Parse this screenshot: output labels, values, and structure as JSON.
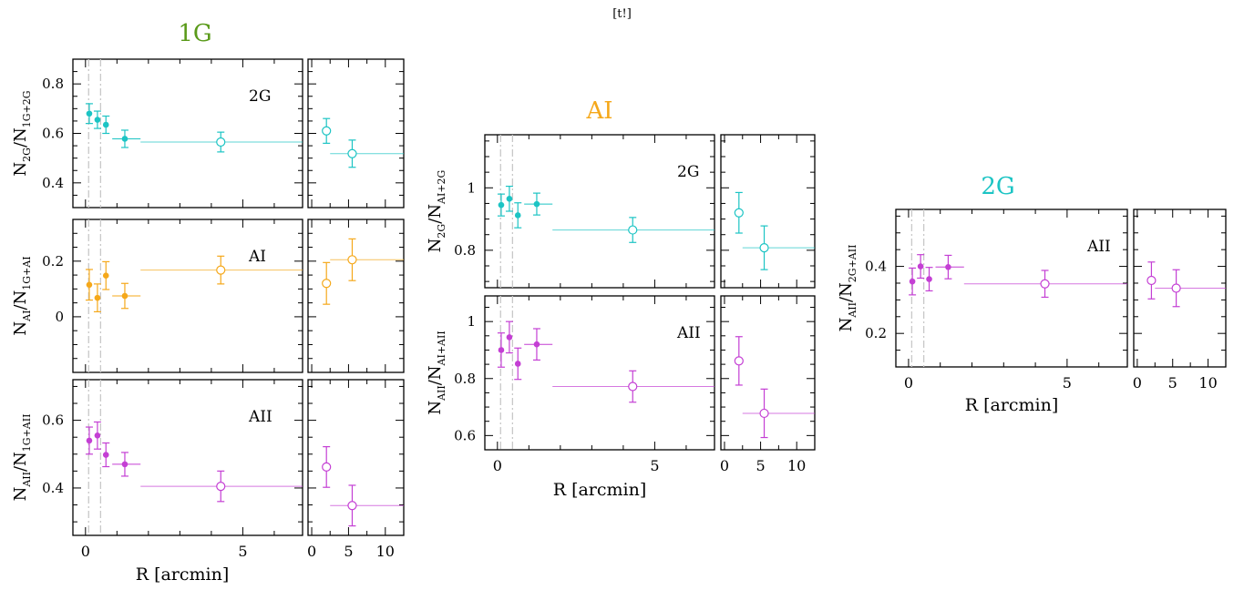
{
  "caption": "[t!]",
  "colors": {
    "2G": "#1cc4c4",
    "AI": "#f5a81a",
    "AII": "#c43fd4",
    "green": "#5a9a1a"
  },
  "chart_data": [
    {
      "type": "scatter",
      "title": "1G",
      "title_color": "#5a9a1a",
      "xlabel": "R [arcmin]",
      "xlim_inner": [
        -0.4,
        6.9
      ],
      "xlim_outer": [
        -0.5,
        12.5
      ],
      "xticks_inner": [
        0,
        5
      ],
      "xticks_outer": [
        0,
        5,
        10
      ],
      "vlines": [
        0.1,
        0.48
      ],
      "panels": [
        {
          "label": "2G",
          "color": "#1cc4c4",
          "ylabel_main": "N",
          "ylabel_sub_num": "2G",
          "ylabel_sub_den": "1G+2G",
          "ylim": [
            0.3,
            0.9
          ],
          "yticks": [
            0.4,
            0.6,
            0.8
          ],
          "inner": [
            {
              "x": 0.12,
              "y": 0.68,
              "err": 0.04
            },
            {
              "x": 0.38,
              "y": 0.655,
              "err": 0.035
            },
            {
              "x": 0.65,
              "y": 0.635,
              "err": 0.035
            },
            {
              "x": 1.25,
              "y": 0.578,
              "err": 0.035,
              "xlo": 0.85,
              "xhi": 1.75
            }
          ],
          "inner_open": [
            {
              "x": 4.3,
              "y": 0.565,
              "err": 0.04,
              "xlo": 1.75,
              "xhi": 6.9
            }
          ],
          "outer_open": [
            {
              "x": 2.0,
              "y": 0.61,
              "err": 0.05
            },
            {
              "x": 5.5,
              "y": 0.518,
              "err": 0.055,
              "xlo": 2.5,
              "xhi": 12.5
            }
          ]
        },
        {
          "label": "AI",
          "color": "#f5a81a",
          "ylabel_main": "N",
          "ylabel_sub_num": "AI",
          "ylabel_sub_den": "1G+AI",
          "ylim": [
            -0.2,
            0.35
          ],
          "yticks": [
            0,
            0.2
          ],
          "inner": [
            {
              "x": 0.12,
              "y": 0.115,
              "err": 0.055
            },
            {
              "x": 0.38,
              "y": 0.068,
              "err": 0.05
            },
            {
              "x": 0.65,
              "y": 0.148,
              "err": 0.05
            },
            {
              "x": 1.25,
              "y": 0.075,
              "err": 0.045,
              "xlo": 0.85,
              "xhi": 1.75
            }
          ],
          "inner_open": [
            {
              "x": 4.3,
              "y": 0.168,
              "err": 0.05,
              "xlo": 1.75,
              "xhi": 6.9
            }
          ],
          "outer_open": [
            {
              "x": 2.0,
              "y": 0.12,
              "err": 0.075
            },
            {
              "x": 5.5,
              "y": 0.205,
              "err": 0.075,
              "xlo": 2.5,
              "xhi": 12.5
            }
          ]
        },
        {
          "label": "AII",
          "color": "#c43fd4",
          "ylabel_main": "N",
          "ylabel_sub_num": "AII",
          "ylabel_sub_den": "1G+AII",
          "ylim": [
            0.26,
            0.72
          ],
          "yticks": [
            0.4,
            0.6
          ],
          "inner": [
            {
              "x": 0.12,
              "y": 0.54,
              "err": 0.04
            },
            {
              "x": 0.38,
              "y": 0.555,
              "err": 0.04
            },
            {
              "x": 0.65,
              "y": 0.498,
              "err": 0.035
            },
            {
              "x": 1.25,
              "y": 0.47,
              "err": 0.035,
              "xlo": 0.85,
              "xhi": 1.75
            }
          ],
          "inner_open": [
            {
              "x": 4.3,
              "y": 0.405,
              "err": 0.045,
              "xlo": 1.75,
              "xhi": 6.9
            }
          ],
          "outer_open": [
            {
              "x": 2.0,
              "y": 0.462,
              "err": 0.06
            },
            {
              "x": 5.5,
              "y": 0.348,
              "err": 0.06,
              "xlo": 2.5,
              "xhi": 12.5
            }
          ]
        }
      ]
    },
    {
      "type": "scatter",
      "title": "AI",
      "title_color": "#f5a81a",
      "xlabel": "R [arcmin]",
      "xlim_inner": [
        -0.4,
        6.9
      ],
      "xlim_outer": [
        -0.5,
        12.5
      ],
      "xticks_inner": [
        0,
        5
      ],
      "xticks_outer": [
        0,
        5,
        10
      ],
      "vlines": [
        0.1,
        0.48
      ],
      "panels": [
        {
          "label": "2G",
          "color": "#1cc4c4",
          "ylabel_main": "N",
          "ylabel_sub_num": "2G",
          "ylabel_sub_den": "AI+2G",
          "ylim": [
            0.68,
            1.17
          ],
          "yticks": [
            0.8,
            1
          ],
          "inner": [
            {
              "x": 0.12,
              "y": 0.945,
              "err": 0.035
            },
            {
              "x": 0.38,
              "y": 0.965,
              "err": 0.04
            },
            {
              "x": 0.65,
              "y": 0.912,
              "err": 0.04
            },
            {
              "x": 1.25,
              "y": 0.948,
              "err": 0.035,
              "xlo": 0.85,
              "xhi": 1.75
            }
          ],
          "inner_open": [
            {
              "x": 4.3,
              "y": 0.865,
              "err": 0.04,
              "xlo": 1.75,
              "xhi": 6.9
            }
          ],
          "outer_open": [
            {
              "x": 2.0,
              "y": 0.92,
              "err": 0.065
            },
            {
              "x": 5.5,
              "y": 0.808,
              "err": 0.07,
              "xlo": 2.5,
              "xhi": 12.5
            }
          ]
        },
        {
          "label": "AII",
          "color": "#c43fd4",
          "ylabel_main": "N",
          "ylabel_sub_num": "AII",
          "ylabel_sub_den": "AI+AII",
          "ylim": [
            0.55,
            1.09
          ],
          "yticks": [
            0.6,
            0.8,
            1
          ],
          "inner": [
            {
              "x": 0.12,
              "y": 0.9,
              "err": 0.06
            },
            {
              "x": 0.38,
              "y": 0.945,
              "err": 0.055
            },
            {
              "x": 0.65,
              "y": 0.852,
              "err": 0.055
            },
            {
              "x": 1.25,
              "y": 0.92,
              "err": 0.055,
              "xlo": 0.85,
              "xhi": 1.75
            }
          ],
          "inner_open": [
            {
              "x": 4.3,
              "y": 0.772,
              "err": 0.055,
              "xlo": 1.75,
              "xhi": 6.9
            }
          ],
          "outer_open": [
            {
              "x": 2.0,
              "y": 0.862,
              "err": 0.085
            },
            {
              "x": 5.5,
              "y": 0.678,
              "err": 0.085,
              "xlo": 2.5,
              "xhi": 12.5
            }
          ]
        }
      ]
    },
    {
      "type": "scatter",
      "title": "2G",
      "title_color": "#1cc4c4",
      "xlabel": "R [arcmin]",
      "xlim_inner": [
        -0.4,
        6.9
      ],
      "xlim_outer": [
        -0.5,
        12.5
      ],
      "xticks_inner": [
        0,
        5
      ],
      "xticks_outer": [
        0,
        5,
        10
      ],
      "vlines": [
        0.1,
        0.48
      ],
      "panels": [
        {
          "label": "AII",
          "color": "#c43fd4",
          "ylabel_main": "N",
          "ylabel_sub_num": "AII",
          "ylabel_sub_den": "2G+AII",
          "ylim": [
            0.1,
            0.57
          ],
          "yticks": [
            0.2,
            0.4
          ],
          "inner": [
            {
              "x": 0.12,
              "y": 0.355,
              "err": 0.04
            },
            {
              "x": 0.38,
              "y": 0.4,
              "err": 0.035
            },
            {
              "x": 0.65,
              "y": 0.362,
              "err": 0.035
            },
            {
              "x": 1.25,
              "y": 0.398,
              "err": 0.035,
              "xlo": 0.85,
              "xhi": 1.75
            }
          ],
          "inner_open": [
            {
              "x": 4.3,
              "y": 0.348,
              "err": 0.04,
              "xlo": 1.75,
              "xhi": 6.9
            }
          ],
          "outer_open": [
            {
              "x": 2.0,
              "y": 0.358,
              "err": 0.055
            },
            {
              "x": 5.5,
              "y": 0.335,
              "err": 0.055,
              "xlo": 2.5,
              "xhi": 12.5
            }
          ]
        }
      ]
    }
  ]
}
